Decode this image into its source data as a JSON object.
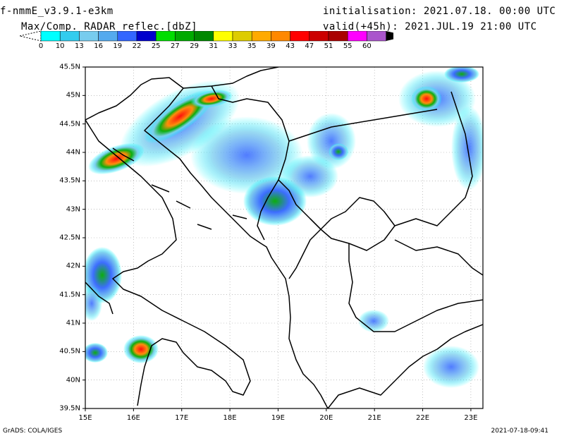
{
  "header": {
    "model": "f-nmmE_v3.9.1-e3km",
    "product": "Max/Comp. RADAR reflec.[dbZ]",
    "initialisation": "initialisation: 2021.07.18. 00:00 UTC",
    "valid": "valid(+45h): 2021.JUL.19 21:00 UTC"
  },
  "legend": {
    "ticks": [
      "0",
      "10",
      "13",
      "16",
      "19",
      "22",
      "25",
      "27",
      "29",
      "31",
      "33",
      "35",
      "39",
      "43",
      "47",
      "51",
      "55",
      "60"
    ],
    "colors": [
      "#00ffff",
      "#33ccee",
      "#77ccee",
      "#55aaee",
      "#3366ff",
      "#0000cc",
      "#00dd00",
      "#00aa00",
      "#008800",
      "#ffff00",
      "#ddcc00",
      "#ffaa00",
      "#ff8800",
      "#ff0000",
      "#cc0000",
      "#aa0000",
      "#ff00ff",
      "#aa55cc"
    ],
    "under_color": "#ffffff",
    "over_color": "#000000"
  },
  "map": {
    "lat_labels": [
      "45.5N",
      "45N",
      "44.5N",
      "44N",
      "43.5N",
      "43N",
      "42.5N",
      "42N",
      "41.5N",
      "41N",
      "40.5N",
      "40N",
      "39.5N"
    ],
    "lon_labels": [
      "15E",
      "16E",
      "17E",
      "18E",
      "19E",
      "20E",
      "21E",
      "22E",
      "23E"
    ],
    "extent": {
      "lon_min": 15.0,
      "lon_max": 23.25,
      "lat_min": 39.5,
      "lat_max": 45.5
    }
  },
  "footer": {
    "credit": "GrADS: COLA/IGES",
    "timestamp": "2021-07-18-09:41"
  }
}
